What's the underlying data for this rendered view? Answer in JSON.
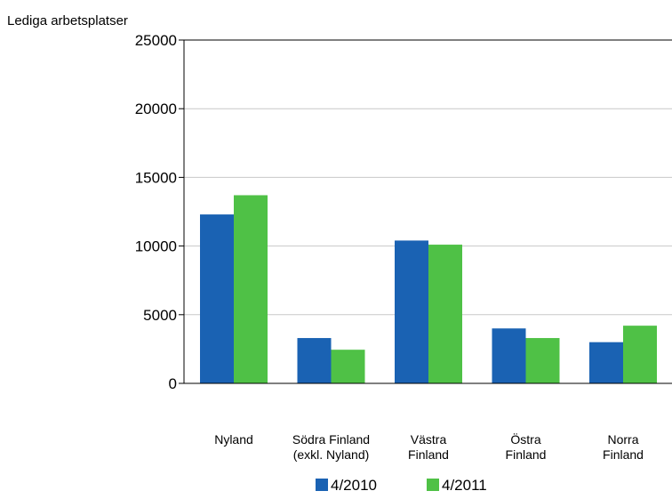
{
  "chart_data": {
    "type": "bar",
    "title": "",
    "xlabel": "",
    "ylabel": "Lediga arbetsplatser",
    "ylim": [
      0,
      25000
    ],
    "yticks": [
      "0",
      "5000",
      "10000",
      "15000",
      "20000",
      "25000"
    ],
    "grid": true,
    "legend_position": "bottom",
    "categories": [
      [
        "Nyland"
      ],
      [
        "Södra Finland",
        "(exkl. Nyland)"
      ],
      [
        "Västra",
        "Finland"
      ],
      [
        "Östra",
        "Finland"
      ],
      [
        "Norra",
        "Finland"
      ]
    ],
    "series": [
      {
        "name": "4/2010",
        "color": "#1a62b3",
        "values": [
          12300,
          3300,
          10400,
          4000,
          3000
        ]
      },
      {
        "name": "4/2011",
        "color": "#4fc146",
        "values": [
          13700,
          2450,
          10100,
          3300,
          4200
        ]
      }
    ]
  }
}
